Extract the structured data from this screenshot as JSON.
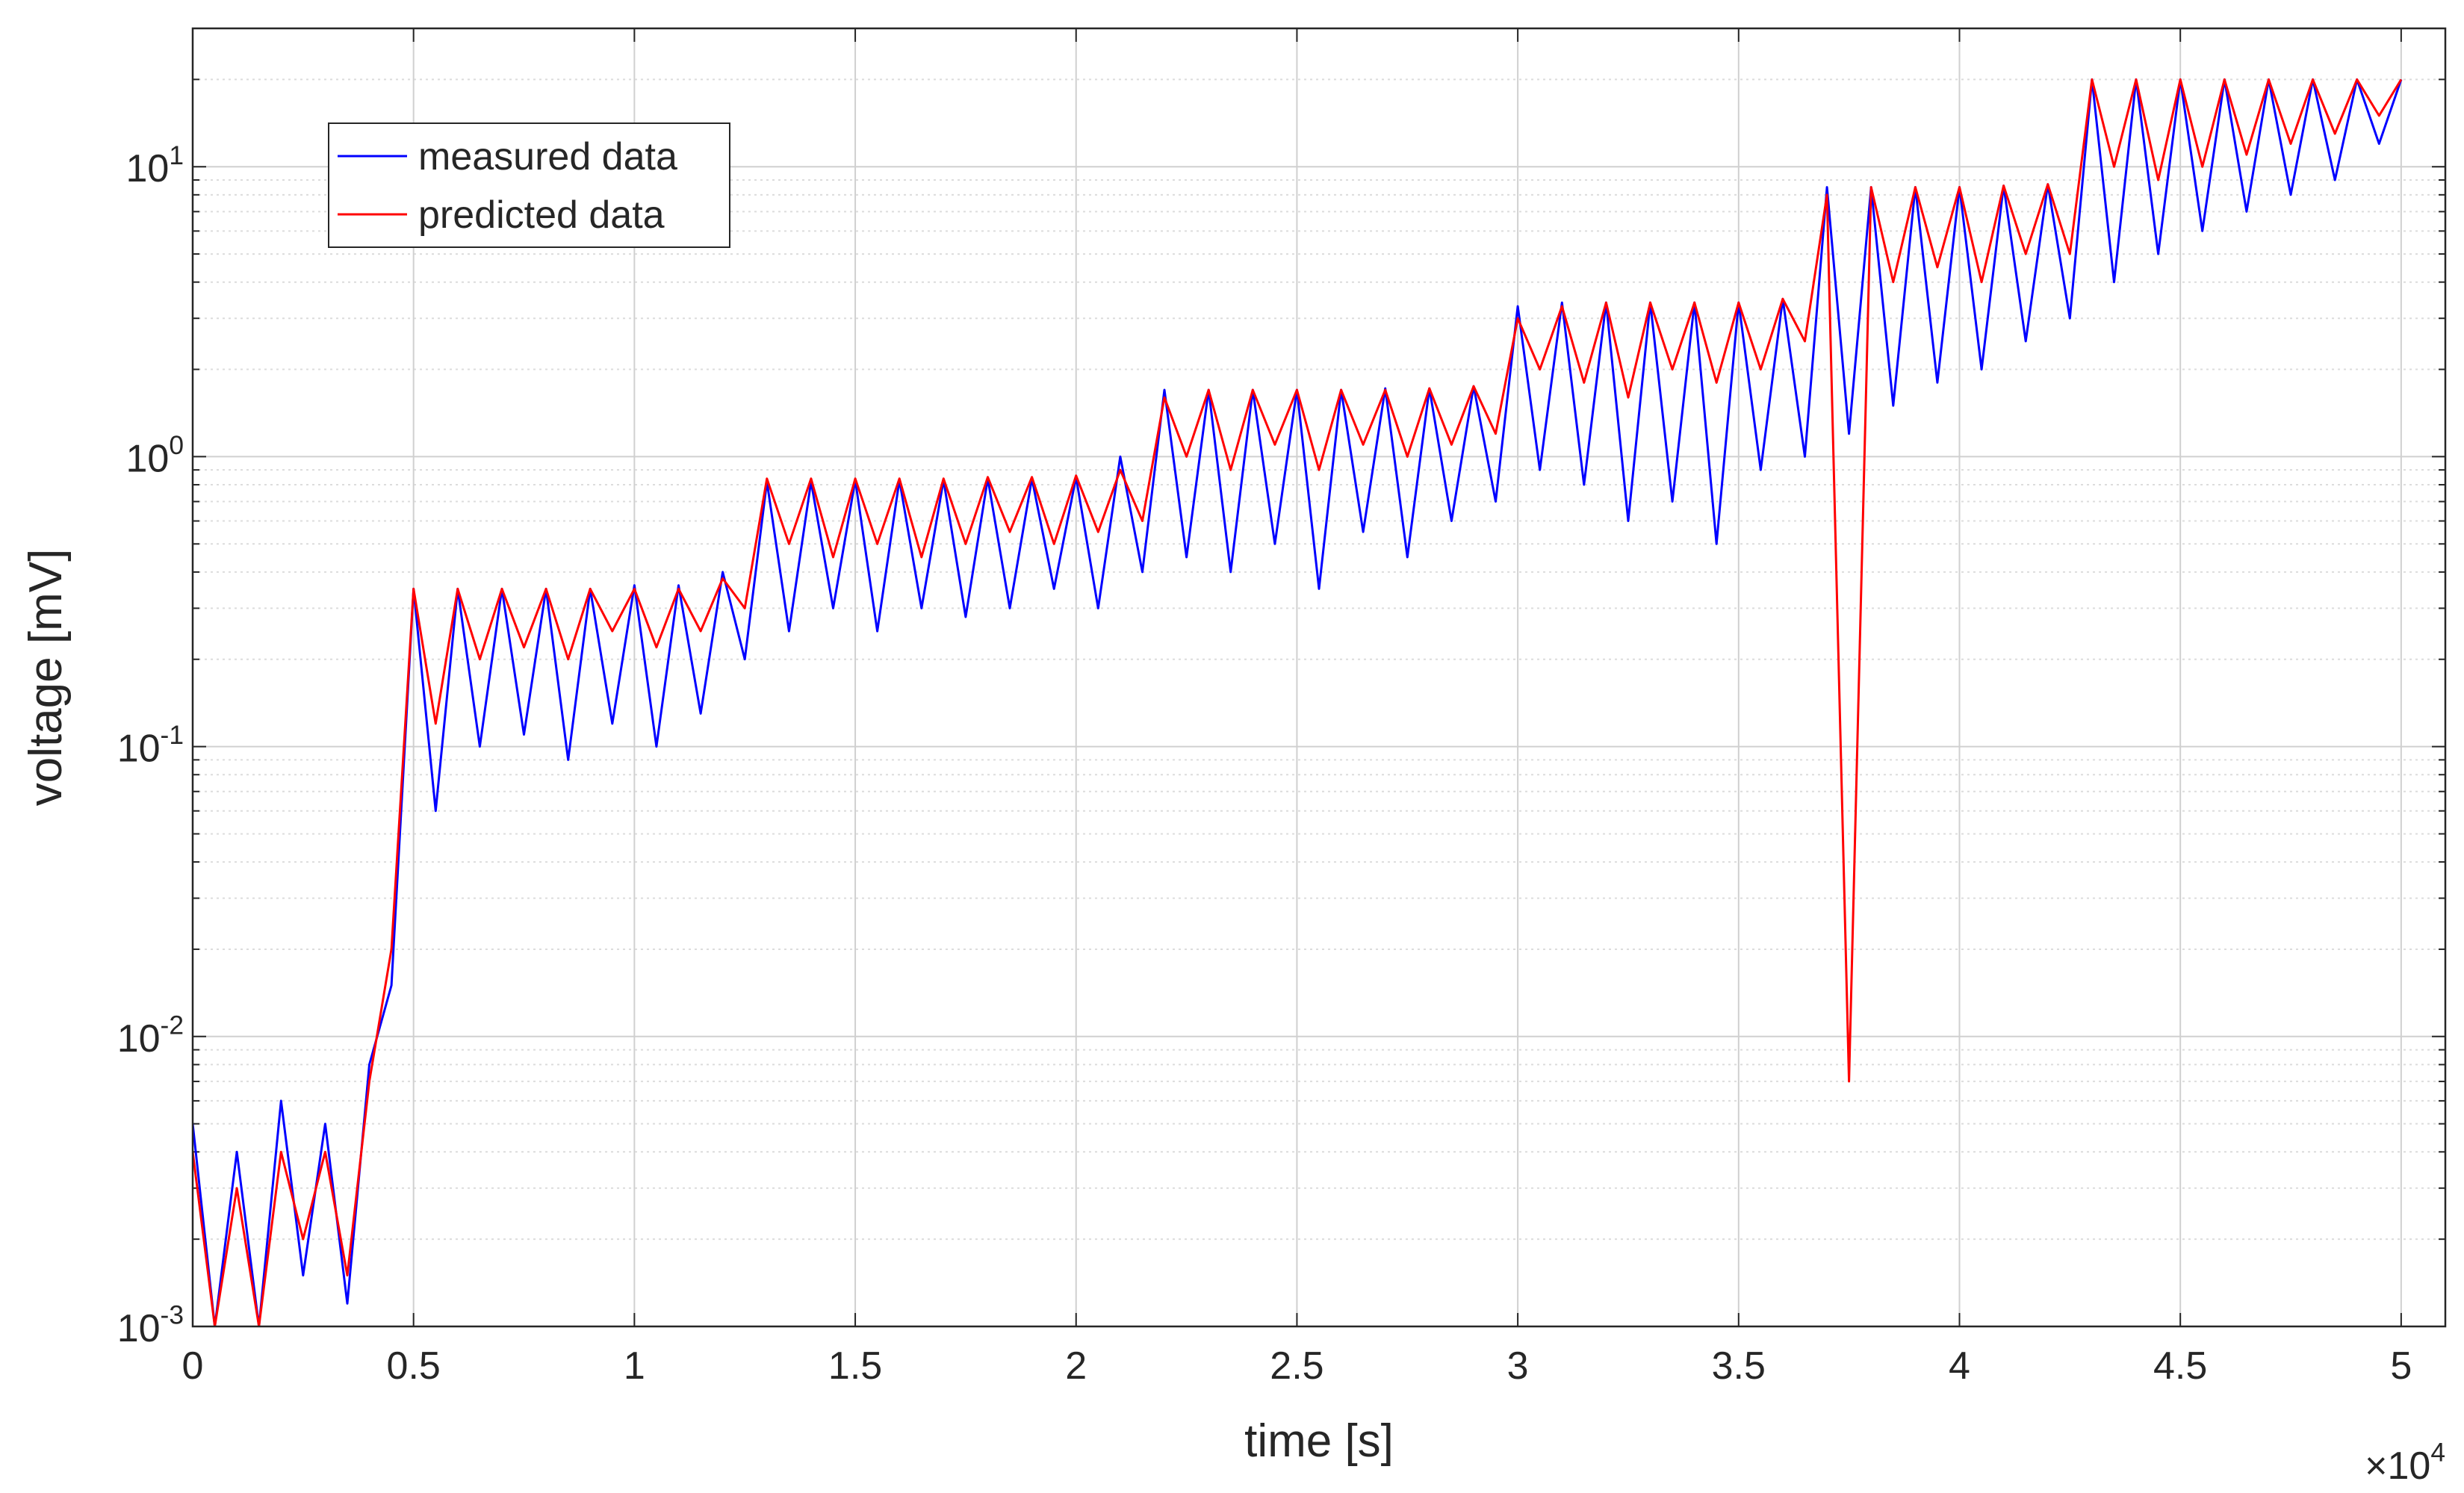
{
  "chart_data": {
    "type": "line",
    "x_label": "time [s]",
    "y_label": "voltage [mV]",
    "x_exponent_label": "×10^{4}",
    "y_scale": "log",
    "grid": true,
    "minor_grid": true,
    "legend_position": "northwest",
    "xlim": [
      0,
      51000
    ],
    "ylim": [
      0.001,
      30
    ],
    "xticks": [
      {
        "value": 0,
        "label": "0"
      },
      {
        "value": 5000,
        "label": "0.5"
      },
      {
        "value": 10000,
        "label": "1"
      },
      {
        "value": 15000,
        "label": "1.5"
      },
      {
        "value": 20000,
        "label": "2"
      },
      {
        "value": 25000,
        "label": "2.5"
      },
      {
        "value": 30000,
        "label": "3"
      },
      {
        "value": 35000,
        "label": "3.5"
      },
      {
        "value": 40000,
        "label": "4"
      },
      {
        "value": 45000,
        "label": "4.5"
      },
      {
        "value": 50000,
        "label": "5"
      }
    ],
    "yticks": [
      {
        "value": 0.001,
        "label": "10^{-3}"
      },
      {
        "value": 0.01,
        "label": "10^{-2}"
      },
      {
        "value": 0.1,
        "label": "10^{-1}"
      },
      {
        "value": 1,
        "label": "10^{0}"
      },
      {
        "value": 10,
        "label": "10^{1}"
      }
    ],
    "x": [
      0,
      500,
      1000,
      1500,
      2000,
      2500,
      3000,
      3500,
      4000,
      4500,
      5000,
      5500,
      6000,
      6500,
      7000,
      7500,
      8000,
      8500,
      9000,
      9500,
      10000,
      10500,
      11000,
      11500,
      12000,
      12500,
      13000,
      13500,
      14000,
      14500,
      15000,
      15500,
      16000,
      16500,
      17000,
      17500,
      18000,
      18500,
      19000,
      19500,
      20000,
      20500,
      21000,
      21500,
      22000,
      22500,
      23000,
      23500,
      24000,
      24500,
      25000,
      25500,
      26000,
      26500,
      27000,
      27500,
      28000,
      28500,
      29000,
      29500,
      30000,
      30500,
      31000,
      31500,
      32000,
      32500,
      33000,
      33500,
      34000,
      34500,
      35000,
      35500,
      36000,
      36500,
      37000,
      37500,
      38000,
      38500,
      39000,
      39500,
      40000,
      40500,
      41000,
      41500,
      42000,
      42500,
      43000,
      43500,
      44000,
      44500,
      45000,
      45500,
      46000,
      46500,
      47000,
      47500,
      48000,
      48500,
      49000,
      49500,
      50000
    ],
    "series": [
      {
        "name": "measured data",
        "color": "#0000ff",
        "values": [
          0.005,
          0.001,
          0.004,
          0.001,
          0.006,
          0.0015,
          0.005,
          0.0012,
          0.008,
          0.015,
          0.35,
          0.06,
          0.35,
          0.1,
          0.35,
          0.11,
          0.35,
          0.09,
          0.35,
          0.12,
          0.36,
          0.1,
          0.36,
          0.13,
          0.4,
          0.2,
          0.82,
          0.25,
          0.82,
          0.3,
          0.83,
          0.25,
          0.83,
          0.3,
          0.83,
          0.28,
          0.84,
          0.3,
          0.84,
          0.35,
          0.85,
          0.3,
          1.0,
          0.4,
          1.7,
          0.45,
          1.7,
          0.4,
          1.7,
          0.5,
          1.7,
          0.35,
          1.7,
          0.55,
          1.72,
          0.45,
          1.72,
          0.6,
          1.75,
          0.7,
          3.3,
          0.9,
          3.4,
          0.8,
          3.4,
          0.6,
          3.4,
          0.7,
          3.4,
          0.5,
          3.4,
          0.9,
          3.5,
          1.0,
          8.5,
          1.2,
          8.5,
          1.5,
          8.5,
          1.8,
          8.5,
          2,
          8.6,
          2.5,
          8.7,
          3,
          20,
          4,
          20,
          5,
          20,
          6,
          20,
          7,
          20,
          8,
          20,
          9,
          20,
          12,
          20
        ]
      },
      {
        "name": "predicted data",
        "color": "#ff0000",
        "values": [
          0.004,
          0.001,
          0.003,
          0.001,
          0.004,
          0.002,
          0.004,
          0.0015,
          0.007,
          0.02,
          0.35,
          0.12,
          0.35,
          0.2,
          0.35,
          0.22,
          0.35,
          0.2,
          0.35,
          0.25,
          0.35,
          0.22,
          0.35,
          0.25,
          0.38,
          0.3,
          0.84,
          0.5,
          0.84,
          0.45,
          0.84,
          0.5,
          0.84,
          0.45,
          0.84,
          0.5,
          0.85,
          0.55,
          0.85,
          0.5,
          0.86,
          0.55,
          0.9,
          0.6,
          1.6,
          1.0,
          1.7,
          0.9,
          1.7,
          1.1,
          1.7,
          0.9,
          1.7,
          1.1,
          1.7,
          1.0,
          1.72,
          1.1,
          1.75,
          1.2,
          3.0,
          2,
          3.3,
          1.8,
          3.4,
          1.6,
          3.4,
          2,
          3.4,
          1.8,
          3.4,
          2,
          3.5,
          2.5,
          8.0,
          0.007,
          8.5,
          4,
          8.5,
          4.5,
          8.5,
          4,
          8.6,
          5,
          8.7,
          5,
          20,
          10,
          20,
          9,
          20,
          10,
          20,
          11,
          20,
          12,
          20,
          13,
          20,
          15,
          20
        ]
      }
    ]
  }
}
